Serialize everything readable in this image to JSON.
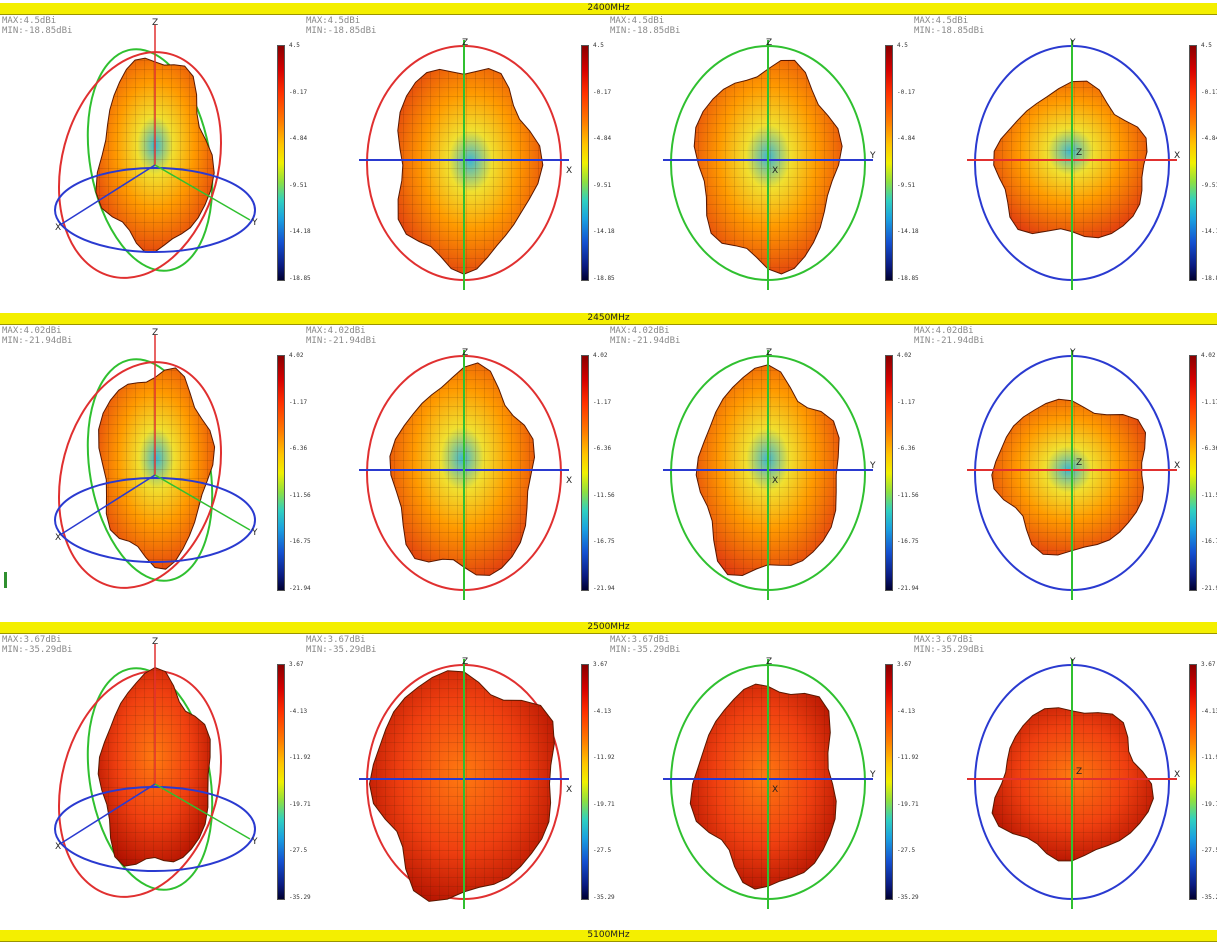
{
  "bands": [
    {
      "label": "2400MHz"
    },
    {
      "label": "2450MHz"
    },
    {
      "label": "2500MHz"
    },
    {
      "label": "5100MHz"
    }
  ],
  "rows": [
    {
      "max": "MAX:4.5dBi",
      "min": "MIN:-18.85dBi",
      "ticks": [
        "4.5",
        "-0.17",
        "-4.84",
        "-9.51",
        "-14.18",
        "-18.85"
      ]
    },
    {
      "max": "MAX:4.02dBi",
      "min": "MIN:-21.94dBi",
      "ticks": [
        "4.02",
        "-1.17",
        "-6.36",
        "-11.56",
        "-16.75",
        "-21.94"
      ]
    },
    {
      "max": "MAX:3.67dBi",
      "min": "MIN:-35.29dBi",
      "ticks": [
        "3.67",
        "-4.13",
        "-11.92",
        "-19.71",
        "-27.5",
        "-35.29"
      ]
    }
  ],
  "views": [
    {
      "name": "isometric",
      "axes": [
        "Z",
        "X",
        "Y"
      ]
    },
    {
      "name": "front-xz",
      "axes": [
        "Z",
        "X"
      ]
    },
    {
      "name": "side-yz",
      "axes": [
        "Z",
        "Y",
        "X"
      ]
    },
    {
      "name": "top-xy",
      "axes": [
        "Y",
        "X",
        "Z"
      ]
    }
  ],
  "colors": {
    "band": "#f4ef00",
    "axis_x": "#e03030",
    "axis_y": "#30c030",
    "axis_z": "#2a3ad0",
    "pattern_outer": "#e03a10",
    "pattern_mid": "#ff9a00",
    "pattern_low": "#3fb6d0"
  }
}
